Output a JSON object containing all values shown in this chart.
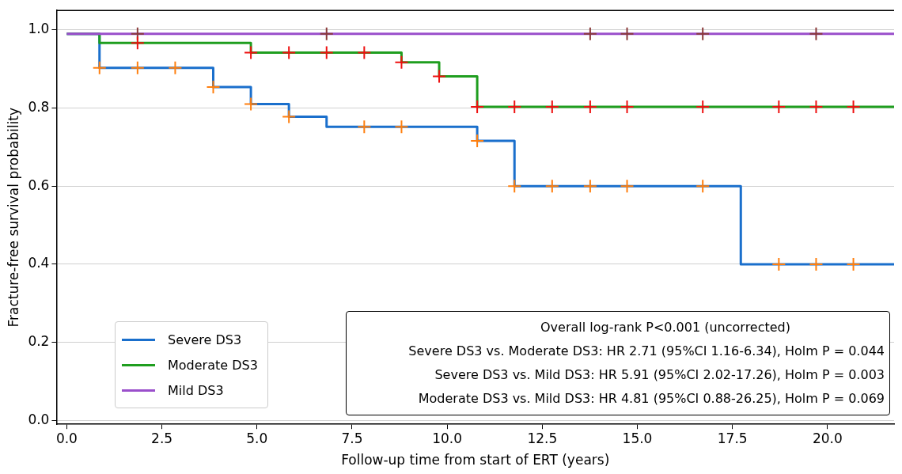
{
  "chart_data": {
    "type": "step",
    "xlabel": "Follow-up time from start of ERT (years)",
    "ylabel": "Fracture-free survival probability",
    "xlim": [
      -0.27,
      21.75
    ],
    "ylim": [
      -0.01,
      1.05
    ],
    "xticks": [
      {
        "value": 0,
        "label": "0.0"
      },
      2.5,
      {
        "value": 5,
        "label": "5.0"
      },
      7.5,
      {
        "value": 10,
        "label": "10.0"
      },
      12.5,
      {
        "value": 15,
        "label": "15.0"
      },
      17.5,
      {
        "value": 20,
        "label": "20.0"
      }
    ],
    "yticks": [
      {
        "value": 0,
        "label": "0.0"
      },
      0.2,
      0.4,
      0.6,
      0.8,
      {
        "value": 1,
        "label": "1.0"
      }
    ],
    "grid": "y",
    "legend": "bottom left",
    "series": [
      {
        "name": "Severe DS3",
        "marker": "none",
        "color": "#1a6fcc",
        "x": [
          0,
          0.86,
          3.85,
          4.84,
          5.84,
          6.83,
          10.79,
          11.77,
          17.72,
          21.75
        ],
        "values": [
          0.99,
          0.903,
          0.854,
          0.81,
          0.778,
          0.752,
          0.716,
          0.6,
          0.4,
          0.4
        ]
      },
      {
        "name": "Moderate DS3",
        "marker": "none",
        "color": "#1f9e1f",
        "x": [
          0,
          0.86,
          4.84,
          8.8,
          9.79,
          10.79,
          21.75
        ],
        "values": [
          0.99,
          0.967,
          0.942,
          0.917,
          0.881,
          0.803,
          0.803
        ]
      },
      {
        "name": "Mild DS3",
        "marker": "none",
        "color": "#9a4fcb",
        "x": [
          0,
          21.75
        ],
        "values": [
          0.99,
          0.99
        ]
      },
      {
        "type": "scatter",
        "marker": "cross",
        "color": "#ff7f0e",
        "x": [
          0.86,
          1.86,
          2.85,
          3.85,
          4.84,
          5.84,
          7.82,
          8.8,
          10.79,
          11.77,
          12.76,
          13.76,
          14.73,
          16.72,
          18.72,
          19.7,
          20.68
        ],
        "values": [
          0.903,
          0.903,
          0.903,
          0.854,
          0.81,
          0.778,
          0.752,
          0.752,
          0.716,
          0.6,
          0.6,
          0.6,
          0.6,
          0.6,
          0.4,
          0.4,
          0.4
        ]
      },
      {
        "type": "scatter",
        "marker": "cross",
        "color": "#ee1111",
        "x": [
          1.86,
          4.84,
          5.84,
          6.83,
          7.82,
          8.8,
          9.79,
          10.79,
          11.77,
          12.76,
          13.76,
          14.73,
          16.72,
          18.72,
          19.7,
          20.68
        ],
        "values": [
          0.967,
          0.942,
          0.942,
          0.942,
          0.942,
          0.917,
          0.881,
          0.803,
          0.803,
          0.803,
          0.803,
          0.803,
          0.803,
          0.803,
          0.803,
          0.803
        ]
      },
      {
        "type": "scatter",
        "marker": "cross",
        "color": "#8b3a3a",
        "x": [
          1.86,
          6.83,
          13.76,
          14.73,
          16.72,
          19.7
        ],
        "values": [
          0.99,
          0.99,
          0.99,
          0.99,
          0.99,
          0.99
        ]
      }
    ],
    "annotations": [
      "Overall log-rank P<0.001 (uncorrected)",
      "Severe DS3 vs. Moderate DS3: HR 2.71 (95%CI 1.16-6.34), Holm P = 0.044",
      "Severe DS3 vs. Mild DS3: HR 5.91 (95%CI 2.02-17.26), Holm P = 0.003",
      "Moderate DS3 vs. Mild DS3: HR 4.81 (95%CI 0.88-26.25), Holm P = 0.069"
    ]
  }
}
